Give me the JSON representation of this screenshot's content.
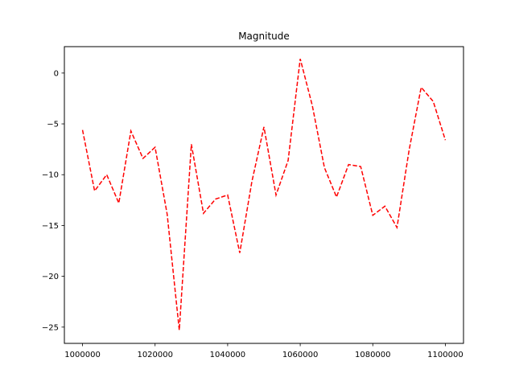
{
  "chart_data": {
    "type": "line",
    "title": "Magnitude",
    "xlabel": "",
    "ylabel": "",
    "xlim": [
      995000,
      1105000
    ],
    "ylim": [
      -26.6,
      2.6
    ],
    "xticks": [
      1000000,
      1020000,
      1040000,
      1060000,
      1080000,
      1100000
    ],
    "xtick_labels": [
      "1000000",
      "1020000",
      "1040000",
      "1060000",
      "1080000",
      "1100000"
    ],
    "yticks": [
      0,
      -5,
      -10,
      -15,
      -20,
      -25
    ],
    "ytick_labels": [
      "0",
      "−5",
      "−10",
      "−15",
      "−20",
      "−25"
    ],
    "grid": false,
    "series": [
      {
        "name": "Magnitude",
        "color": "#ff0000",
        "line_style": "dashed",
        "x": [
          1000000,
          1003333,
          1006667,
          1010000,
          1013333,
          1016667,
          1020000,
          1023333,
          1026667,
          1030000,
          1033333,
          1036667,
          1040000,
          1043333,
          1046667,
          1050000,
          1053333,
          1056667,
          1060000,
          1063333,
          1066667,
          1070000,
          1073333,
          1076667,
          1080000,
          1083333,
          1086667,
          1090000,
          1093333,
          1096667,
          1100000
        ],
        "y": [
          -5.6,
          -11.6,
          -10.0,
          -12.8,
          -5.7,
          -8.4,
          -7.3,
          -13.9,
          -25.3,
          -7.0,
          -13.8,
          -12.4,
          -12.0,
          -17.7,
          -10.7,
          -5.3,
          -12.0,
          -8.6,
          1.4,
          -3.2,
          -9.3,
          -12.2,
          -9.0,
          -9.2,
          -14.0,
          -13.1,
          -15.2,
          -7.6,
          -1.4,
          -2.8,
          -6.6
        ]
      }
    ]
  }
}
